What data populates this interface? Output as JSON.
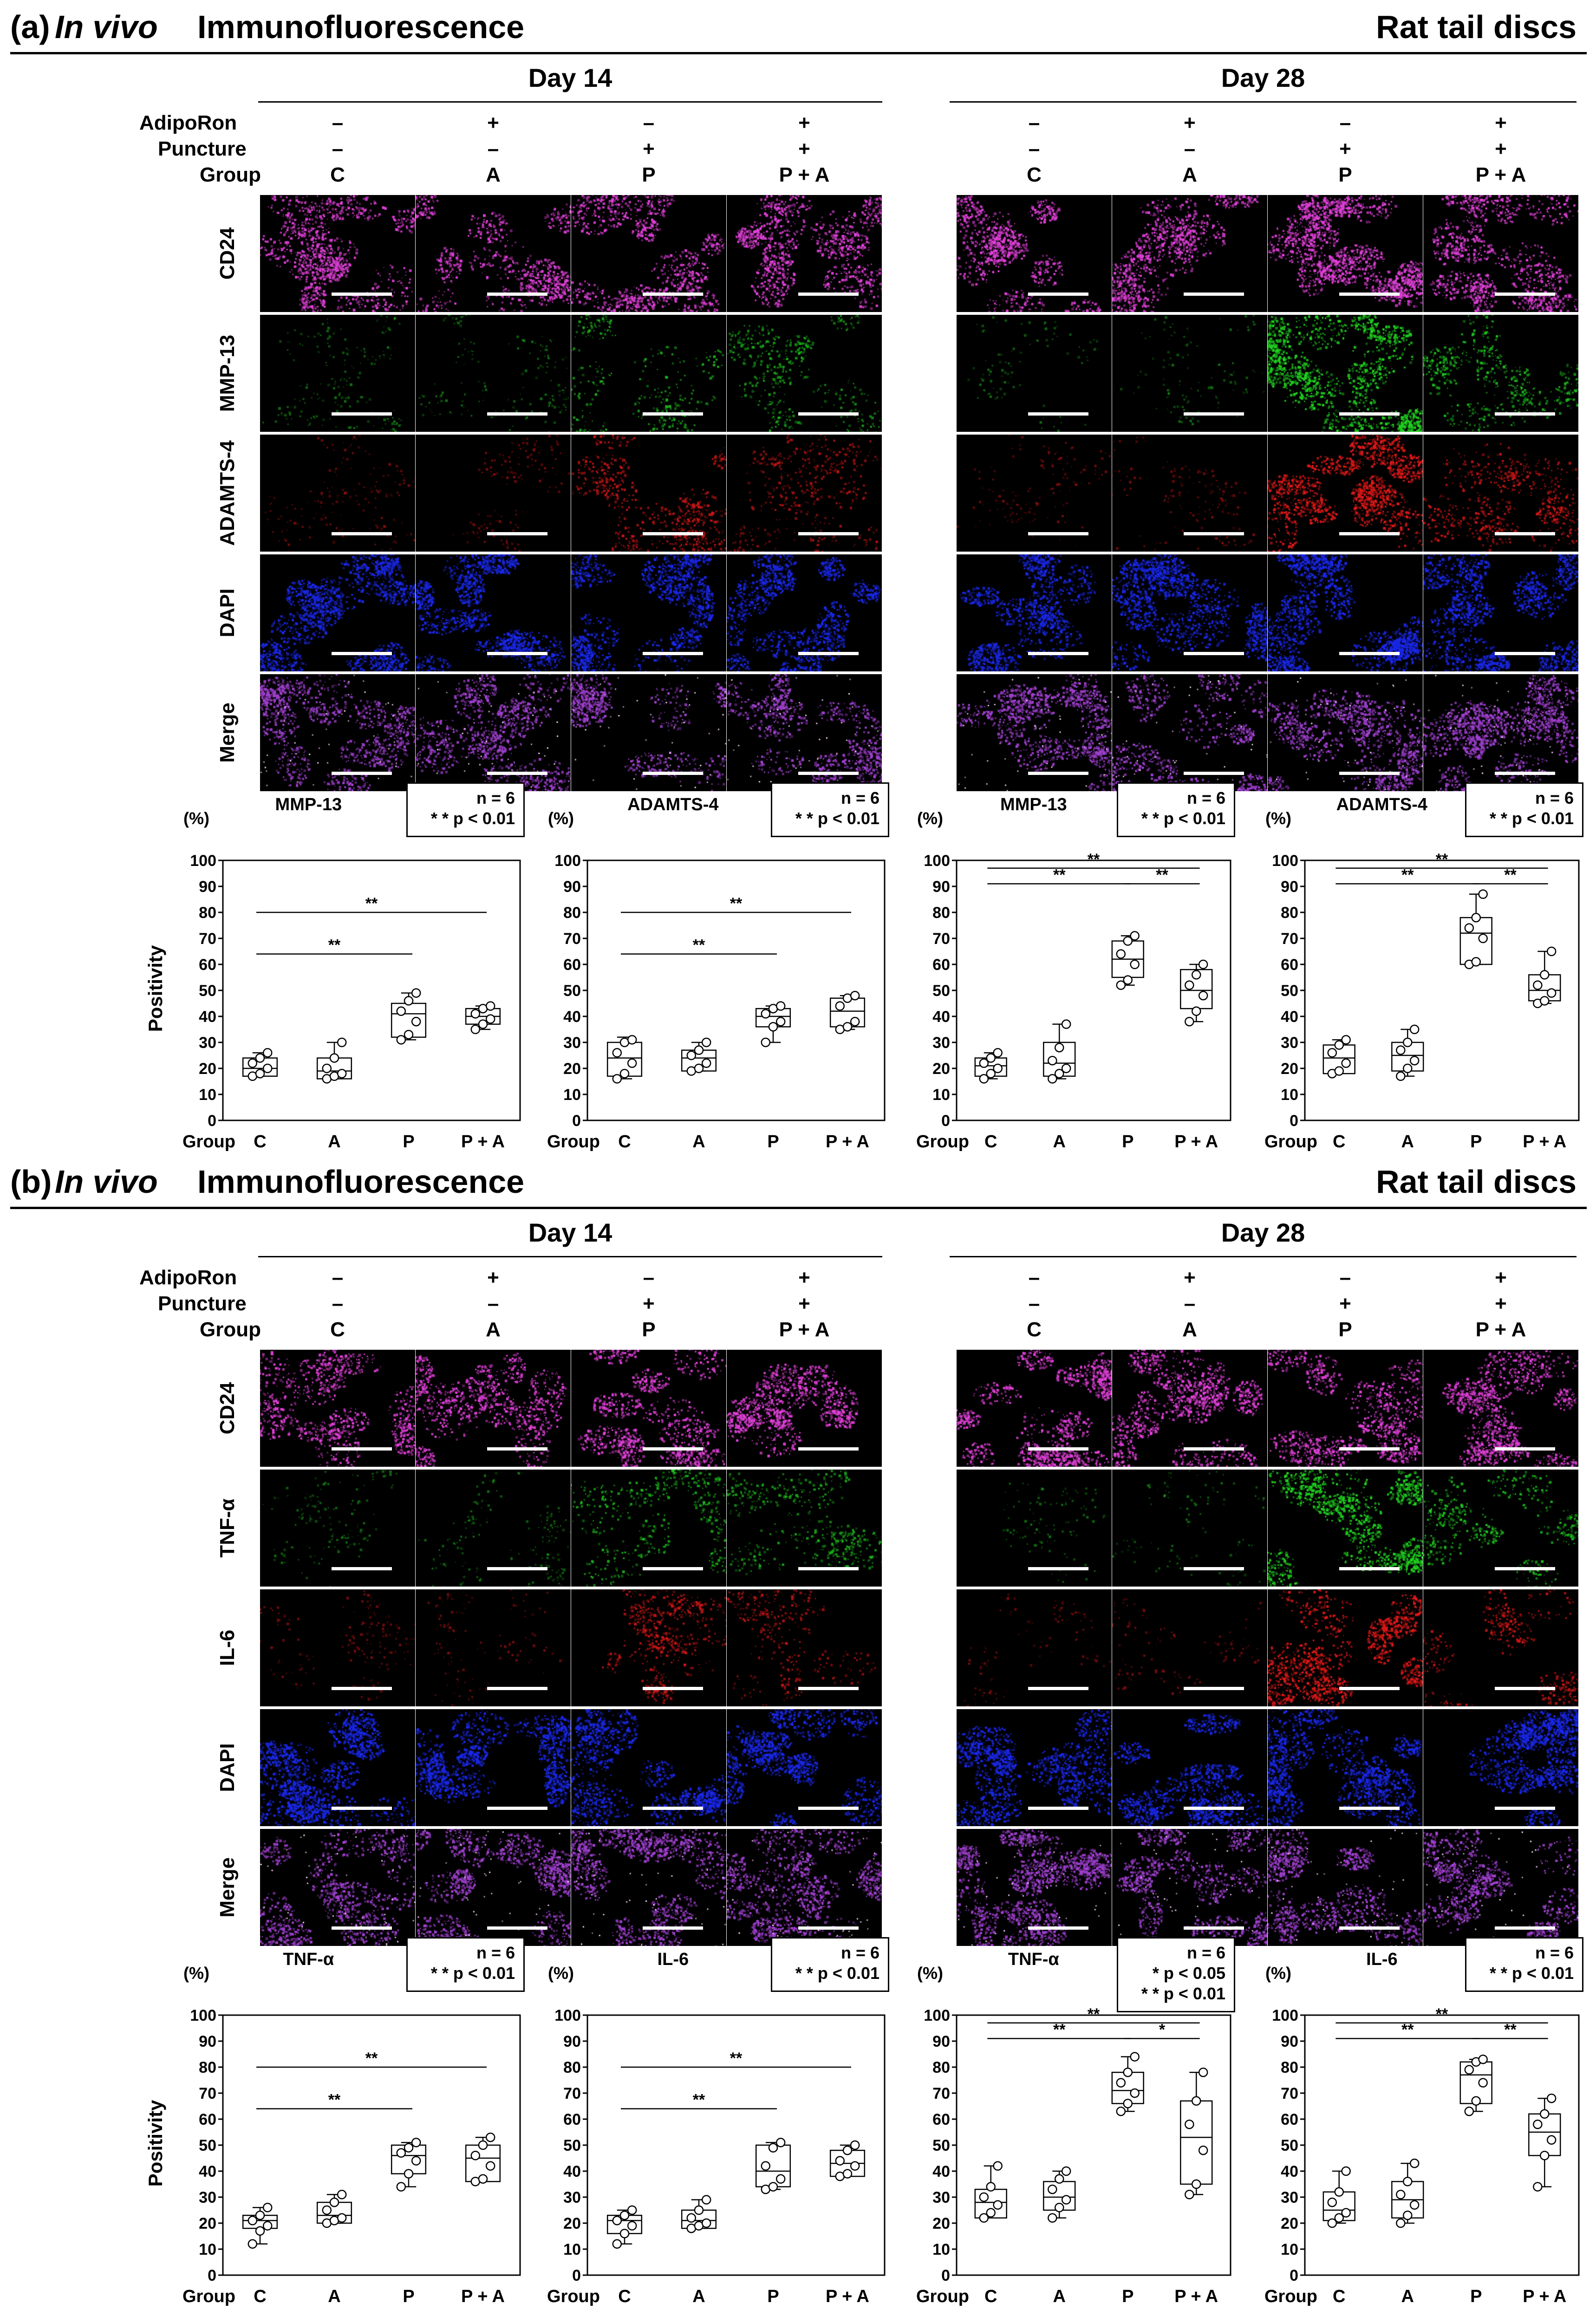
{
  "panels": [
    {
      "label": "(a)",
      "title_italic": "In vivo",
      "title_rest": " Immunofluorescence",
      "right_title": "Rat tail discs",
      "day_groups": [
        {
          "day": "Day 14",
          "adiporon": [
            "–",
            "+",
            "–",
            "+"
          ],
          "puncture": [
            "–",
            "–",
            "+",
            "+"
          ],
          "groups": [
            "C",
            "A",
            "P",
            "P + A"
          ]
        },
        {
          "day": "Day 28",
          "adiporon": [
            "–",
            "+",
            "–",
            "+"
          ],
          "puncture": [
            "–",
            "–",
            "+",
            "+"
          ],
          "groups": [
            "C",
            "A",
            "P",
            "P + A"
          ]
        }
      ],
      "row_header_labels": {
        "adiporon": "AdipoRon",
        "puncture": "Puncture",
        "group": "Group"
      },
      "stains": [
        "CD24",
        "MMP-13",
        "ADAMTS-4",
        "DAPI",
        "Merge"
      ],
      "stain_colors": {
        "CD24": "#e040d8",
        "MMP-13": "#20d020",
        "ADAMTS-4": "#e01818",
        "DAPI": "#1a28e8",
        "Merge": "#a040d0"
      },
      "chart_data": [
        {
          "type": "box",
          "title": "MMP-13",
          "stat_lines": [
            "n = 6",
            "* * p < 0.01"
          ],
          "xlabel": "Group",
          "ylabel": "Positivity",
          "yunit": "(%)",
          "categories": [
            "C",
            "A",
            "P",
            "P + A"
          ],
          "ylim": [
            0,
            100
          ],
          "yticks": [
            0,
            10,
            20,
            30,
            40,
            50,
            60,
            70,
            80,
            90,
            100
          ],
          "boxes": [
            {
              "min": 17,
              "q1": 17,
              "median": 20,
              "q3": 24,
              "max": 26
            },
            {
              "min": 16,
              "q1": 16,
              "median": 19,
              "q3": 24,
              "max": 30
            },
            {
              "min": 31,
              "q1": 32,
              "median": 41,
              "q3": 45,
              "max": 49
            },
            {
              "min": 35,
              "q1": 37,
              "median": 40,
              "q3": 43,
              "max": 44
            }
          ],
          "points": [
            [
              17,
              18,
              20,
              22,
              24,
              26
            ],
            [
              16,
              17,
              18,
              20,
              24,
              30
            ],
            [
              31,
              33,
              38,
              42,
              46,
              49
            ],
            [
              35,
              37,
              39,
              41,
              43,
              44
            ]
          ],
          "significance": [
            {
              "from": 0,
              "to": 2,
              "label": "**"
            },
            {
              "from": 0,
              "to": 3,
              "label": "**"
            }
          ]
        },
        {
          "type": "box",
          "title": "ADAMTS-4",
          "stat_lines": [
            "n = 6",
            "* * p < 0.01"
          ],
          "xlabel": "Group",
          "ylabel": "",
          "yunit": "(%)",
          "categories": [
            "C",
            "A",
            "P",
            "P + A"
          ],
          "ylim": [
            0,
            100
          ],
          "yticks": [
            0,
            10,
            20,
            30,
            40,
            50,
            60,
            70,
            80,
            90,
            100
          ],
          "boxes": [
            {
              "min": 16,
              "q1": 17,
              "median": 24,
              "q3": 30,
              "max": 32
            },
            {
              "min": 19,
              "q1": 19,
              "median": 24,
              "q3": 27,
              "max": 30
            },
            {
              "min": 30,
              "q1": 36,
              "median": 40,
              "q3": 43,
              "max": 44
            },
            {
              "min": 35,
              "q1": 36,
              "median": 42,
              "q3": 47,
              "max": 48
            }
          ],
          "points": [
            [
              16,
              18,
              22,
              26,
              30,
              31
            ],
            [
              19,
              20,
              22,
              25,
              27,
              30
            ],
            [
              30,
              36,
              38,
              41,
              43,
              44
            ],
            [
              35,
              36,
              38,
              44,
              47,
              48
            ]
          ],
          "significance": [
            {
              "from": 0,
              "to": 2,
              "label": "**"
            },
            {
              "from": 0,
              "to": 3,
              "label": "**"
            }
          ]
        },
        {
          "type": "box",
          "title": "MMP-13",
          "stat_lines": [
            "n = 6",
            "* * p < 0.01"
          ],
          "xlabel": "Group",
          "ylabel": "",
          "yunit": "(%)",
          "categories": [
            "C",
            "A",
            "P",
            "P + A"
          ],
          "ylim": [
            0,
            100
          ],
          "yticks": [
            0,
            10,
            20,
            30,
            40,
            50,
            60,
            70,
            80,
            90,
            100
          ],
          "boxes": [
            {
              "min": 16,
              "q1": 17,
              "median": 21,
              "q3": 24,
              "max": 26
            },
            {
              "min": 16,
              "q1": 17,
              "median": 22,
              "q3": 30,
              "max": 37
            },
            {
              "min": 52,
              "q1": 55,
              "median": 62,
              "q3": 69,
              "max": 71
            },
            {
              "min": 38,
              "q1": 43,
              "median": 50,
              "q3": 58,
              "max": 60
            }
          ],
          "points": [
            [
              16,
              18,
              20,
              22,
              24,
              26
            ],
            [
              16,
              18,
              20,
              23,
              28,
              37
            ],
            [
              52,
              54,
              60,
              64,
              69,
              71
            ],
            [
              38,
              42,
              48,
              52,
              56,
              60
            ]
          ],
          "significance": [
            {
              "from": 0,
              "to": 2,
              "label": "**"
            },
            {
              "from": 0,
              "to": 3,
              "label": "**"
            },
            {
              "from": 2,
              "to": 3,
              "label": "**"
            }
          ]
        },
        {
          "type": "box",
          "title": "ADAMTS-4",
          "stat_lines": [
            "n = 6",
            "* * p < 0.01"
          ],
          "xlabel": "Group",
          "ylabel": "",
          "yunit": "(%)",
          "categories": [
            "C",
            "A",
            "P",
            "P + A"
          ],
          "ylim": [
            0,
            100
          ],
          "yticks": [
            0,
            10,
            20,
            30,
            40,
            50,
            60,
            70,
            80,
            90,
            100
          ],
          "boxes": [
            {
              "min": 18,
              "q1": 18,
              "median": 24,
              "q3": 29,
              "max": 31
            },
            {
              "min": 17,
              "q1": 19,
              "median": 25,
              "q3": 30,
              "max": 35
            },
            {
              "min": 60,
              "q1": 60,
              "median": 72,
              "q3": 78,
              "max": 87
            },
            {
              "min": 45,
              "q1": 46,
              "median": 50,
              "q3": 56,
              "max": 65
            }
          ],
          "points": [
            [
              18,
              19,
              22,
              26,
              29,
              31
            ],
            [
              17,
              20,
              23,
              27,
              30,
              35
            ],
            [
              60,
              61,
              70,
              74,
              78,
              87
            ],
            [
              45,
              46,
              49,
              52,
              56,
              65
            ]
          ],
          "significance": [
            {
              "from": 0,
              "to": 2,
              "label": "**"
            },
            {
              "from": 0,
              "to": 3,
              "label": "**"
            },
            {
              "from": 2,
              "to": 3,
              "label": "**"
            }
          ]
        }
      ]
    },
    {
      "label": "(b)",
      "title_italic": "In vivo",
      "title_rest": " Immunofluorescence",
      "right_title": "Rat tail discs",
      "day_groups": [
        {
          "day": "Day 14",
          "adiporon": [
            "–",
            "+",
            "–",
            "+"
          ],
          "puncture": [
            "–",
            "–",
            "+",
            "+"
          ],
          "groups": [
            "C",
            "A",
            "P",
            "P + A"
          ]
        },
        {
          "day": "Day 28",
          "adiporon": [
            "–",
            "+",
            "–",
            "+"
          ],
          "puncture": [
            "–",
            "–",
            "+",
            "+"
          ],
          "groups": [
            "C",
            "A",
            "P",
            "P + A"
          ]
        }
      ],
      "row_header_labels": {
        "adiporon": "AdipoRon",
        "puncture": "Puncture",
        "group": "Group"
      },
      "stains": [
        "CD24",
        "TNF-α",
        "IL-6",
        "DAPI",
        "Merge"
      ],
      "stain_colors": {
        "CD24": "#e040d8",
        "TNF-α": "#20d020",
        "IL-6": "#e01818",
        "DAPI": "#1a28e8",
        "Merge": "#a040d0"
      },
      "chart_data": [
        {
          "type": "box",
          "title": "TNF-α",
          "stat_lines": [
            "n = 6",
            "* * p < 0.01"
          ],
          "xlabel": "Group",
          "ylabel": "Positivity",
          "yunit": "(%)",
          "categories": [
            "C",
            "A",
            "P",
            "P + A"
          ],
          "ylim": [
            0,
            100
          ],
          "yticks": [
            0,
            10,
            20,
            30,
            40,
            50,
            60,
            70,
            80,
            90,
            100
          ],
          "boxes": [
            {
              "min": 12,
              "q1": 18,
              "median": 21,
              "q3": 23,
              "max": 26
            },
            {
              "min": 20,
              "q1": 20,
              "median": 23,
              "q3": 28,
              "max": 31
            },
            {
              "min": 34,
              "q1": 39,
              "median": 46,
              "q3": 50,
              "max": 51
            },
            {
              "min": 36,
              "q1": 36,
              "median": 45,
              "q3": 50,
              "max": 53
            }
          ],
          "points": [
            [
              12,
              17,
              19,
              21,
              23,
              26
            ],
            [
              20,
              21,
              22,
              25,
              28,
              31
            ],
            [
              34,
              39,
              44,
              47,
              49,
              51
            ],
            [
              36,
              37,
              42,
              46,
              50,
              53
            ]
          ],
          "significance": [
            {
              "from": 0,
              "to": 2,
              "label": "**"
            },
            {
              "from": 0,
              "to": 3,
              "label": "**"
            }
          ]
        },
        {
          "type": "box",
          "title": "IL-6",
          "stat_lines": [
            "n = 6",
            "* * p < 0.01"
          ],
          "xlabel": "Group",
          "ylabel": "",
          "yunit": "(%)",
          "categories": [
            "C",
            "A",
            "P",
            "P + A"
          ],
          "ylim": [
            0,
            100
          ],
          "yticks": [
            0,
            10,
            20,
            30,
            40,
            50,
            60,
            70,
            80,
            90,
            100
          ],
          "boxes": [
            {
              "min": 12,
              "q1": 16,
              "median": 21,
              "q3": 23,
              "max": 25
            },
            {
              "min": 18,
              "q1": 18,
              "median": 21,
              "q3": 25,
              "max": 29
            },
            {
              "min": 33,
              "q1": 34,
              "median": 40,
              "q3": 50,
              "max": 51
            },
            {
              "min": 38,
              "q1": 38,
              "median": 43,
              "q3": 48,
              "max": 50
            }
          ],
          "points": [
            [
              12,
              16,
              19,
              21,
              23,
              25
            ],
            [
              18,
              19,
              20,
              22,
              25,
              29
            ],
            [
              33,
              34,
              37,
              42,
              49,
              51
            ],
            [
              38,
              39,
              42,
              44,
              48,
              50
            ]
          ],
          "significance": [
            {
              "from": 0,
              "to": 2,
              "label": "**"
            },
            {
              "from": 0,
              "to": 3,
              "label": "**"
            }
          ]
        },
        {
          "type": "box",
          "title": "TNF-α",
          "stat_lines": [
            "n = 6",
            "*  p < 0.05",
            "* * p < 0.01"
          ],
          "xlabel": "Group",
          "ylabel": "",
          "yunit": "(%)",
          "categories": [
            "C",
            "A",
            "P",
            "P + A"
          ],
          "ylim": [
            0,
            100
          ],
          "yticks": [
            0,
            10,
            20,
            30,
            40,
            50,
            60,
            70,
            80,
            90,
            100
          ],
          "boxes": [
            {
              "min": 22,
              "q1": 22,
              "median": 28,
              "q3": 33,
              "max": 42
            },
            {
              "min": 22,
              "q1": 25,
              "median": 30,
              "q3": 36,
              "max": 40
            },
            {
              "min": 63,
              "q1": 66,
              "median": 71,
              "q3": 78,
              "max": 84
            },
            {
              "min": 31,
              "q1": 35,
              "median": 53,
              "q3": 67,
              "max": 78
            }
          ],
          "points": [
            [
              22,
              24,
              27,
              30,
              34,
              42
            ],
            [
              22,
              26,
              29,
              33,
              37,
              40
            ],
            [
              63,
              66,
              70,
              74,
              78,
              84
            ],
            [
              31,
              35,
              48,
              58,
              67,
              78
            ]
          ],
          "significance": [
            {
              "from": 0,
              "to": 2,
              "label": "**"
            },
            {
              "from": 0,
              "to": 3,
              "label": "**"
            },
            {
              "from": 2,
              "to": 3,
              "label": "*"
            }
          ]
        },
        {
          "type": "box",
          "title": "IL-6",
          "stat_lines": [
            "n = 6",
            "* * p < 0.01"
          ],
          "xlabel": "Group",
          "ylabel": "",
          "yunit": "(%)",
          "categories": [
            "C",
            "A",
            "P",
            "P + A"
          ],
          "ylim": [
            0,
            100
          ],
          "yticks": [
            0,
            10,
            20,
            30,
            40,
            50,
            60,
            70,
            80,
            90,
            100
          ],
          "boxes": [
            {
              "min": 20,
              "q1": 21,
              "median": 25,
              "q3": 32,
              "max": 40
            },
            {
              "min": 20,
              "q1": 22,
              "median": 29,
              "q3": 36,
              "max": 43
            },
            {
              "min": 63,
              "q1": 66,
              "median": 77,
              "q3": 82,
              "max": 83
            },
            {
              "min": 34,
              "q1": 46,
              "median": 55,
              "q3": 62,
              "max": 68
            }
          ],
          "points": [
            [
              20,
              22,
              24,
              28,
              32,
              40
            ],
            [
              20,
              23,
              27,
              31,
              36,
              43
            ],
            [
              63,
              67,
              74,
              79,
              82,
              83
            ],
            [
              34,
              46,
              52,
              58,
              62,
              68
            ]
          ],
          "significance": [
            {
              "from": 0,
              "to": 2,
              "label": "**"
            },
            {
              "from": 0,
              "to": 3,
              "label": "**"
            },
            {
              "from": 2,
              "to": 3,
              "label": "**"
            }
          ]
        }
      ]
    }
  ]
}
